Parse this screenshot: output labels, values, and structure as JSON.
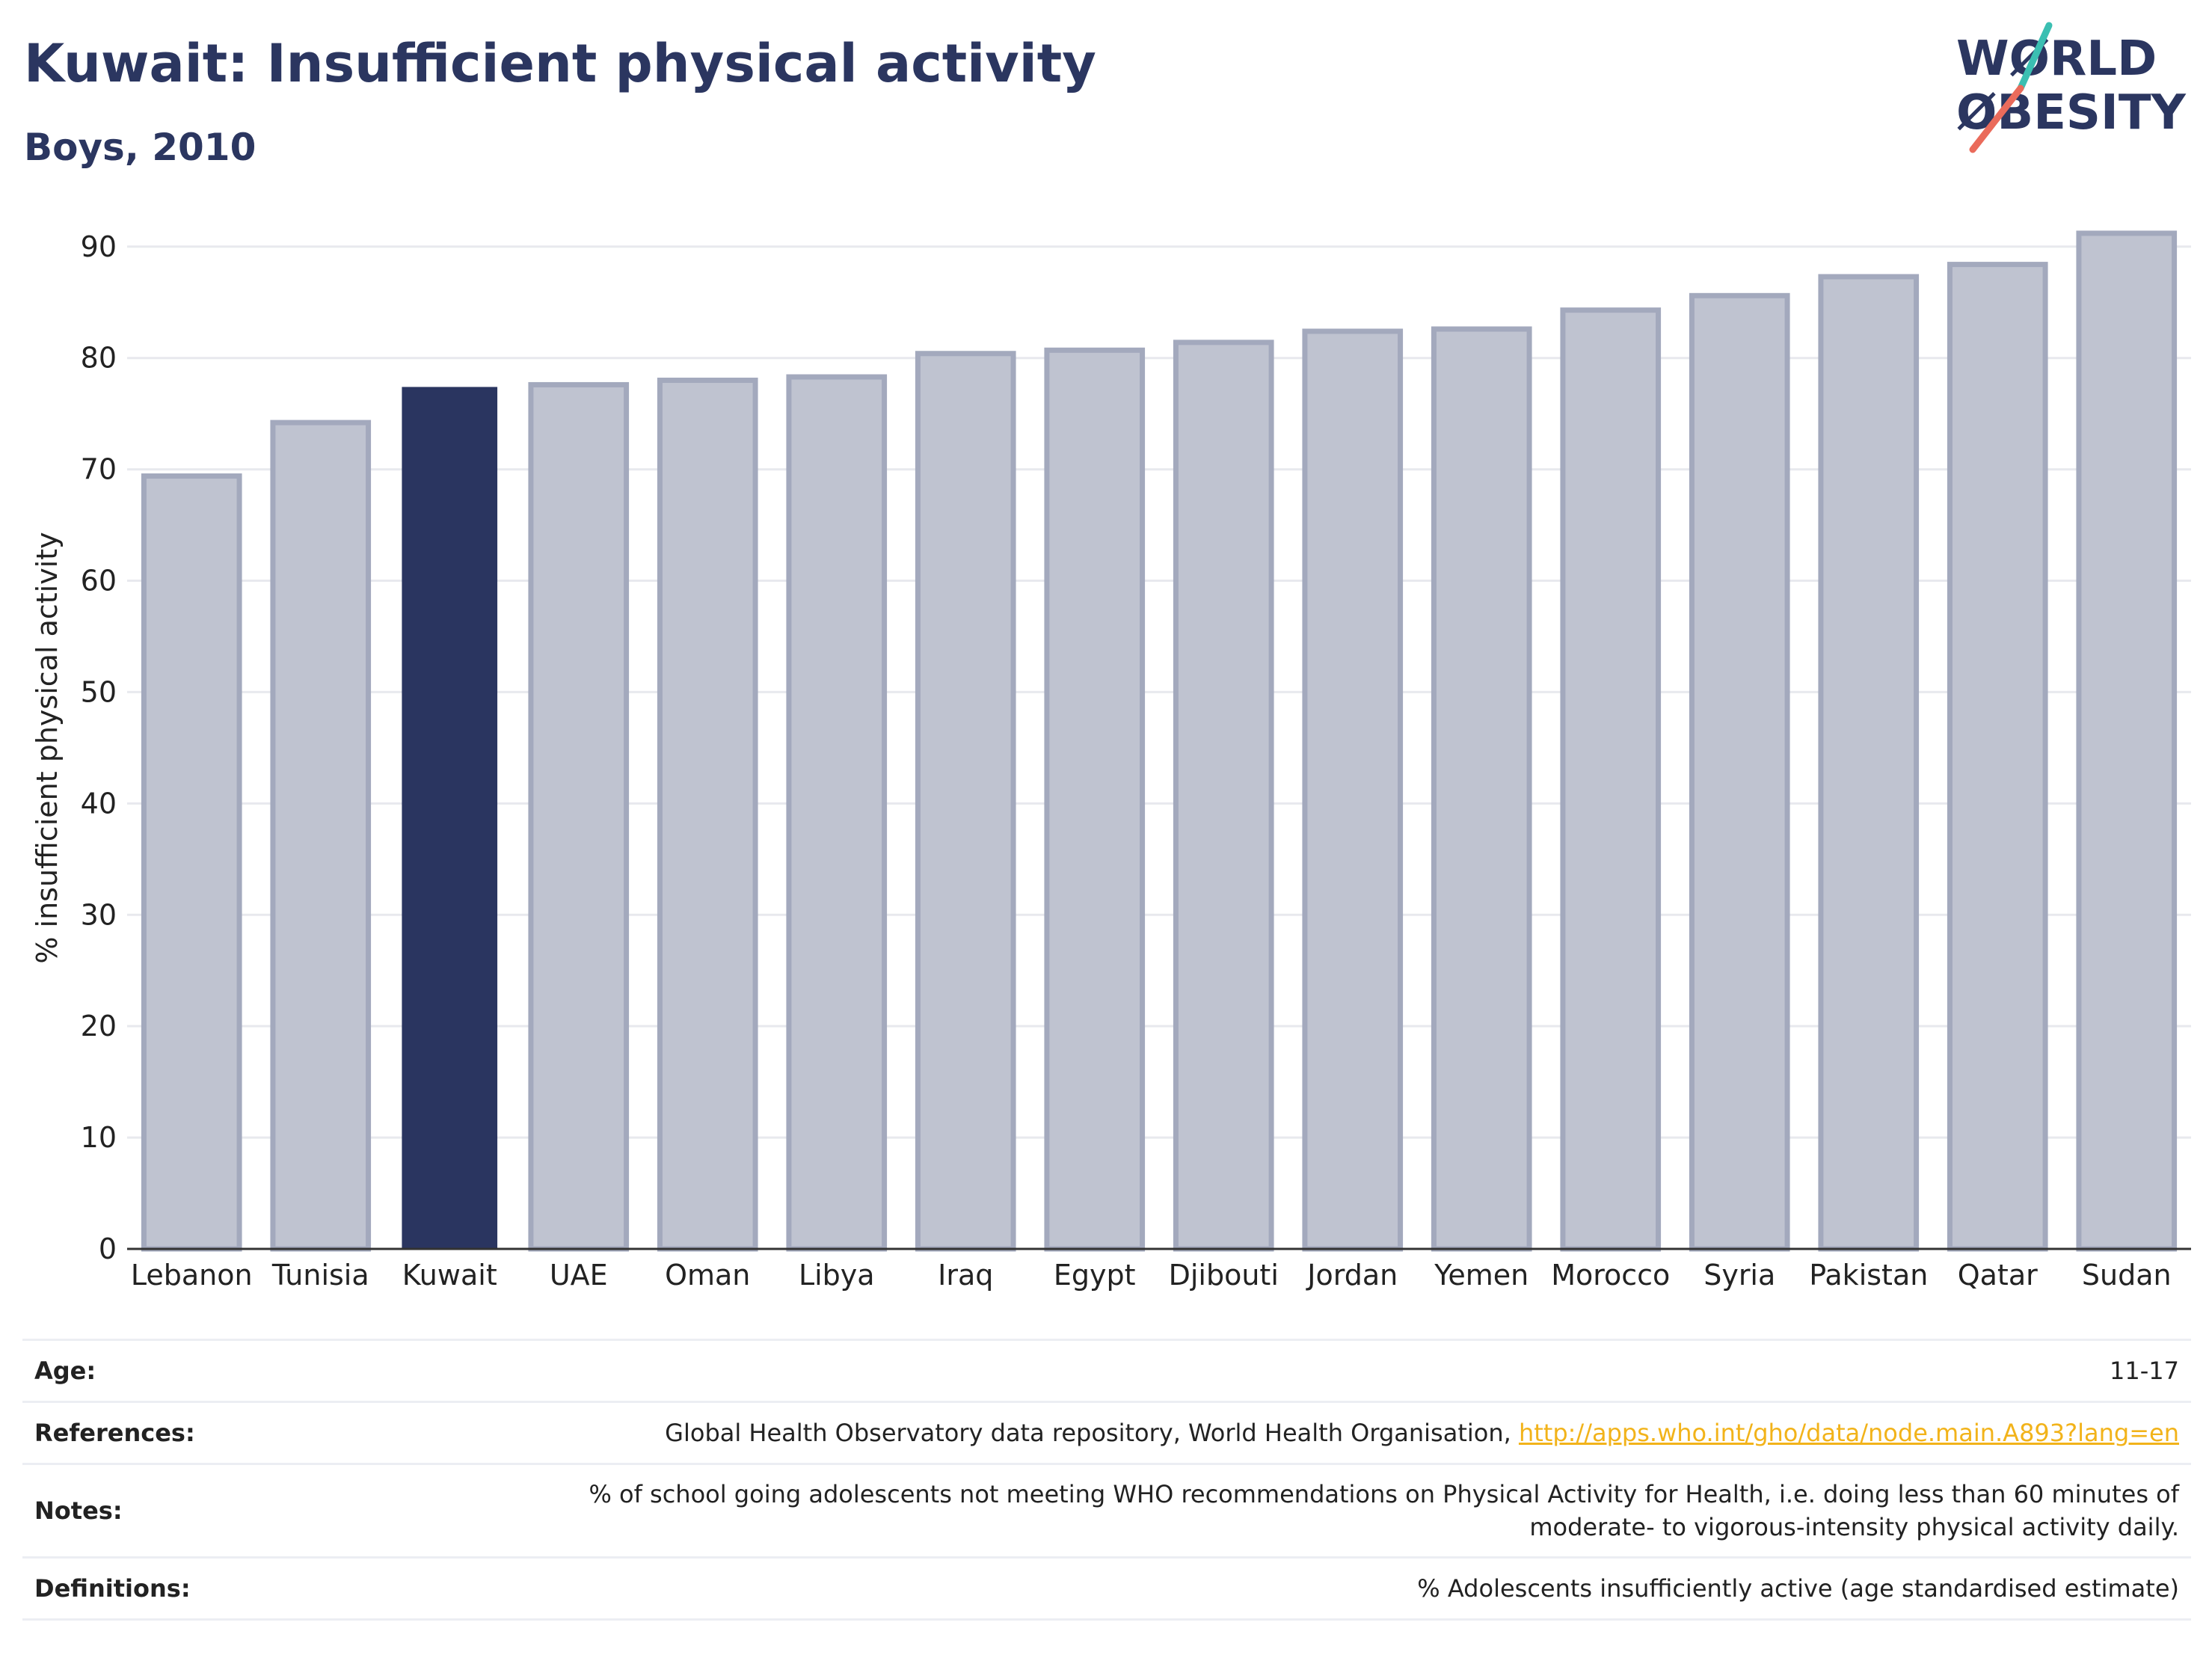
{
  "header": {
    "title": "Kuwait: Insufficient physical activity",
    "subtitle": "Boys, 2010"
  },
  "logo": {
    "line1": "WØRLD",
    "line2": "ØBESITY",
    "text_color": "#2b3660",
    "slash_colors": [
      "#3bbfb2",
      "#ea6b5b"
    ]
  },
  "colors": {
    "highlight_bar": "#2a3560",
    "other_bar_fill": "#bfc3d0",
    "other_bar_stroke": "#a3a9bd",
    "grid": "#e8e9ee",
    "axis": "#333333"
  },
  "chart_data": {
    "type": "bar",
    "categories": [
      "Lebanon",
      "Tunisia",
      "Kuwait",
      "UAE",
      "Oman",
      "Libya",
      "Iraq",
      "Egypt",
      "Djibouti",
      "Jordan",
      "Yemen",
      "Morocco",
      "Syria",
      "Pakistan",
      "Qatar",
      "Sudan"
    ],
    "values": [
      69.4,
      74.2,
      77.4,
      77.6,
      78.0,
      78.3,
      80.4,
      80.7,
      81.4,
      82.4,
      82.6,
      84.3,
      85.6,
      87.3,
      88.4,
      91.2
    ],
    "highlight": "Kuwait",
    "title": "Kuwait: Insufficient physical activity",
    "subtitle": "Boys, 2010",
    "xlabel": "",
    "ylabel": "% insufficient physical activity",
    "ylim": [
      0,
      92
    ],
    "yticks": [
      0,
      10,
      20,
      30,
      40,
      50,
      60,
      70,
      80,
      90
    ],
    "grid": true,
    "legend": "none"
  },
  "info": {
    "age_label": "Age:",
    "age_value": "11-17",
    "references_label": "References:",
    "references_text": "Global Health Observatory data repository, World Health Organisation, ",
    "references_link": "http://apps.who.int/gho/data/node.main.A893?lang=en",
    "notes_label": "Notes:",
    "notes_line1": "% of school going adolescents not meeting WHO recommendations on Physical Activity for Health, i.e. doing less than 60 minutes of",
    "notes_line2": "moderate- to vigorous-intensity physical activity daily.",
    "definitions_label": "Definitions:",
    "definitions_value": "% Adolescents insufficiently active (age standardised estimate)"
  }
}
